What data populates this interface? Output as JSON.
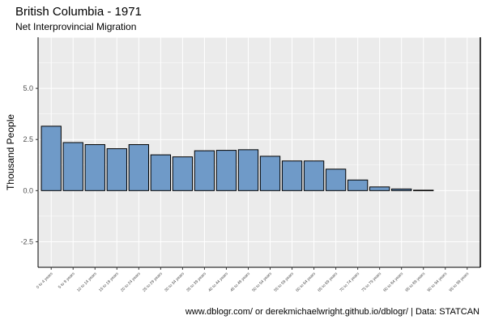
{
  "chart_data": {
    "type": "bar",
    "title": "British Columbia - 1971",
    "subtitle": "Net Interprovincial Migration",
    "xlabel": "",
    "ylabel": "Thousand People",
    "caption": "www.dblogr.com/ or derekmichaelwright.github.io/dblogr/ | Data: STATCAN",
    "categories": [
      "0 to 4 years",
      "5 to 9 years",
      "10 to 14 years",
      "15 to 19 years",
      "20 to 24 years",
      "25 to 29 years",
      "30 to 34 years",
      "35 to 39 years",
      "40 to 44 years",
      "45 to 49 years",
      "50 to 54 years",
      "55 to 59 years",
      "60 to 64 years",
      "65 to 69 years",
      "70 to 74 years",
      "75 to 79 years",
      "80 to 84 years",
      "85 to 89 years",
      "90 to 94 years",
      "95 to 99 years"
    ],
    "values": [
      3.15,
      2.35,
      2.25,
      2.05,
      2.25,
      1.75,
      1.65,
      1.95,
      1.97,
      2.0,
      1.68,
      1.45,
      1.45,
      1.05,
      0.52,
      0.18,
      0.08,
      0.02,
      0.0,
      0.0
    ],
    "yticks": [
      "5.0",
      "2.5",
      "0.0",
      "-2.5"
    ],
    "ylim": [
      -3.75,
      7.5
    ],
    "grid": true,
    "legend": "none",
    "colors": {
      "bar_fill": "#6f9ac8",
      "bar_stroke": "#000000",
      "panel_bg": "#ebebeb",
      "grid": "#ffffff"
    }
  }
}
